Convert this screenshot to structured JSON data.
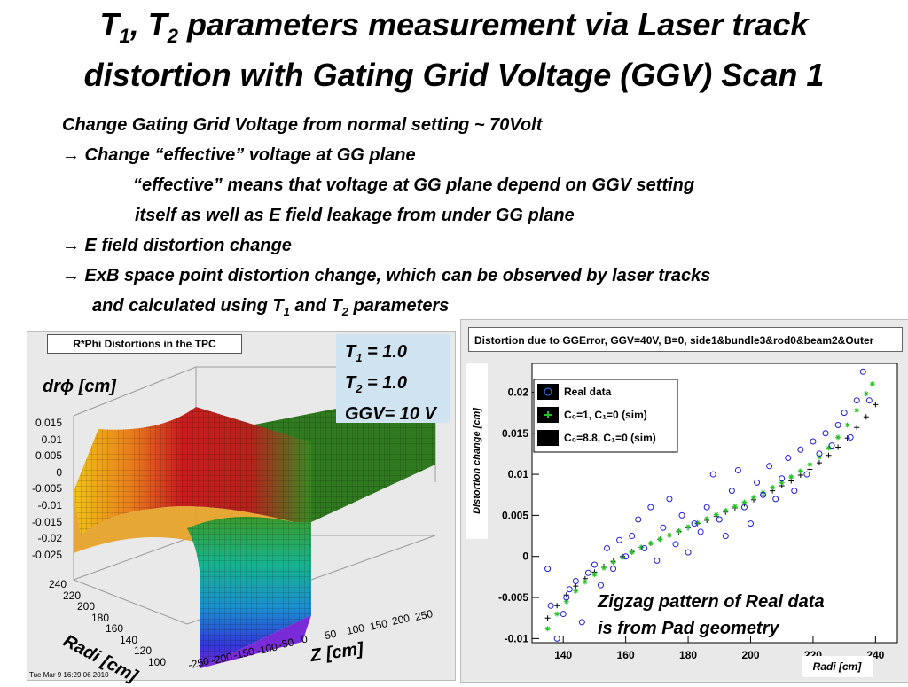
{
  "title": {
    "t1_base": "T",
    "t1_sub": "1",
    "t2_base": "T",
    "t2_sub": "2",
    "line1_rest": " parameters measurement via Laser track",
    "line2": "distortion with Gating Grid Voltage (GGV) Scan 1"
  },
  "bullets": {
    "b1": "Change Gating Grid Voltage from normal setting ~ 70Volt",
    "b2": "→ Change “effective” voltage at GG plane",
    "b3": "“effective” means that voltage at GG plane depend on GGV setting",
    "b4": "itself as well as E field leakage from under GG plane",
    "b5": "→ E field distortion change",
    "b6": "→ ExB space point distortion change, which can be observed by laser tracks",
    "b7_pre": "and calculated using T",
    "b7_sub1": "1",
    "b7_mid": " and T",
    "b7_sub2": "2",
    "b7_post": " parameters"
  },
  "left_plot": {
    "title": "R*Phi Distortions in the TPC",
    "zlabel": "drϕ [cm]",
    "xlabel": "Z [cm]",
    "ylabel": "Radi [cm]",
    "z_ticks": [
      "0.015",
      "0.01",
      "0.005",
      "0",
      "-0.005",
      "-0.01",
      "-0.015",
      "-0.02",
      "-0.025"
    ],
    "r_ticks": [
      "240",
      "220",
      "200",
      "180",
      "160",
      "140",
      "120",
      "100"
    ],
    "x_ticks": [
      "-250",
      "-200",
      "-150",
      "-100",
      "-50",
      "0",
      "50",
      "100",
      "150",
      "200",
      "250"
    ],
    "timestamp": "Tue Mar  9 16:29:06 2010",
    "params": {
      "t1": "= 1.0",
      "t2": "= 1.0",
      "ggv": "GGV= 10 V",
      "t": "T",
      "s1": "1",
      "s2": "2"
    }
  },
  "chart_data": {
    "type": "scatter",
    "title": "Distortion due to GGError, GGV=40V, B=0, side1&bundle3&rod0&beam2&Outer",
    "xlabel": "Radi [cm]",
    "ylabel": "Distortion change  [cm]",
    "xlim": [
      130,
      247
    ],
    "ylim": [
      -0.0105,
      0.0235
    ],
    "x_ticks": [
      "140",
      "160",
      "180",
      "200",
      "220",
      "240"
    ],
    "y_ticks": [
      "0.02",
      "0.015",
      "0.01",
      "0.005",
      "0",
      "-0.005",
      "-0.01"
    ],
    "y_tick_values": [
      0.02,
      0.015,
      0.01,
      0.005,
      0,
      -0.005,
      -0.01
    ],
    "x_tick_values": [
      140,
      160,
      180,
      200,
      220,
      240
    ],
    "legend_position": "top-left",
    "legend": [
      {
        "label": "Real data",
        "marker": "circle",
        "color": "#1f1fd6"
      },
      {
        "label": "C₀=1, C₁=0 (sim)",
        "marker": "star",
        "color": "#22c322"
      },
      {
        "label": "C₀=8.8, C₁=0 (sim)",
        "marker": "cross",
        "color": "#000000"
      }
    ],
    "series": [
      {
        "name": "Real data",
        "x": [
          135,
          136,
          138,
          140,
          141,
          142,
          144,
          146,
          148,
          150,
          152,
          154,
          156,
          158,
          160,
          162,
          164,
          166,
          168,
          170,
          172,
          174,
          176,
          178,
          180,
          182,
          184,
          186,
          188,
          190,
          192,
          194,
          196,
          198,
          200,
          202,
          204,
          206,
          208,
          210,
          212,
          214,
          216,
          218,
          220,
          222,
          224,
          226,
          228,
          230,
          232,
          234,
          236,
          238
        ],
        "y": [
          -0.0015,
          -0.006,
          -0.01,
          -0.007,
          -0.005,
          -0.004,
          -0.003,
          -0.008,
          -0.002,
          -0.001,
          -0.0035,
          0.001,
          -0.0015,
          0.002,
          0.0,
          0.0025,
          0.0045,
          0.001,
          0.006,
          -0.0005,
          0.0035,
          0.007,
          0.0015,
          0.005,
          0.0005,
          0.004,
          0.003,
          0.006,
          0.01,
          0.0045,
          0.0025,
          0.008,
          0.0105,
          0.006,
          0.004,
          0.009,
          0.0075,
          0.011,
          0.007,
          0.0095,
          0.012,
          0.008,
          0.013,
          0.01,
          0.014,
          0.0125,
          0.015,
          0.0135,
          0.016,
          0.0175,
          0.0145,
          0.019,
          0.0225,
          0.019
        ]
      },
      {
        "name": "C0=1, C1=0 (sim)",
        "x": [
          135,
          138,
          141,
          144,
          147,
          150,
          153,
          156,
          159,
          162,
          165,
          168,
          171,
          174,
          177,
          180,
          183,
          186,
          189,
          192,
          195,
          198,
          201,
          204,
          207,
          210,
          213,
          216,
          219,
          222,
          225,
          228,
          231,
          234,
          237,
          239
        ],
        "y": [
          -0.0088,
          -0.007,
          -0.0055,
          -0.0042,
          -0.0031,
          -0.0022,
          -0.0014,
          -0.0007,
          -0.0001,
          0.0005,
          0.0011,
          0.0016,
          0.0021,
          0.0026,
          0.0031,
          0.0036,
          0.0041,
          0.0046,
          0.0051,
          0.0056,
          0.0061,
          0.0066,
          0.0072,
          0.0078,
          0.0084,
          0.009,
          0.0097,
          0.0104,
          0.0112,
          0.0121,
          0.0132,
          0.0145,
          0.016,
          0.0178,
          0.0198,
          0.021
        ]
      },
      {
        "name": "C0=8.8, C1=0 (sim)",
        "x": [
          135,
          138,
          141,
          144,
          147,
          150,
          153,
          156,
          159,
          162,
          165,
          168,
          171,
          174,
          177,
          180,
          183,
          186,
          189,
          192,
          195,
          198,
          201,
          204,
          207,
          210,
          213,
          216,
          219,
          222,
          225,
          228,
          231,
          234,
          237,
          240
        ],
        "y": [
          -0.0075,
          -0.006,
          -0.0047,
          -0.0036,
          -0.0027,
          -0.0019,
          -0.0012,
          -0.0006,
          0.0,
          0.0006,
          0.0011,
          0.0016,
          0.0021,
          0.0026,
          0.003,
          0.0035,
          0.004,
          0.0044,
          0.0049,
          0.0054,
          0.0059,
          0.0064,
          0.0069,
          0.0074,
          0.008,
          0.0086,
          0.0092,
          0.0099,
          0.0106,
          0.0114,
          0.0123,
          0.0133,
          0.0144,
          0.0157,
          0.017,
          0.0185
        ]
      }
    ]
  },
  "annotation": {
    "zig1": "Zigzag pattern of Real data",
    "zig2": "is from Pad geometry"
  }
}
